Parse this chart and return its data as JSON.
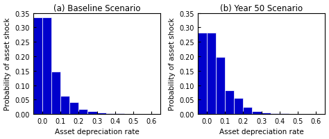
{
  "title_a": "(a) Baseline Scenario",
  "title_b": "(b) Year 50 Scenario",
  "xlabel": "Asset depreciation rate",
  "ylabel": "Probability of asset shock",
  "bar_color": "#0000CC",
  "bar_edgecolor": "#ffffff",
  "ylim": [
    0,
    0.35
  ],
  "yticks": [
    0,
    0.05,
    0.1,
    0.15,
    0.2,
    0.25,
    0.3,
    0.35
  ],
  "xticks": [
    0,
    0.1,
    0.2,
    0.3,
    0.4,
    0.5,
    0.6
  ],
  "bar_width": 0.05,
  "bin_edges_a": [
    -0.05,
    0.0,
    0.05,
    0.1,
    0.15,
    0.2,
    0.25,
    0.3,
    0.35,
    0.4,
    0.45,
    0.5,
    0.55,
    0.6,
    0.65
  ],
  "values_a": [
    0.335,
    0.335,
    0.148,
    0.062,
    0.04,
    0.016,
    0.01,
    0.004,
    0.003,
    0.002,
    0.001,
    0.001,
    0.001,
    0.001
  ],
  "bin_edges_b": [
    -0.05,
    0.0,
    0.05,
    0.1,
    0.15,
    0.2,
    0.25,
    0.3,
    0.35,
    0.4,
    0.45,
    0.5,
    0.55,
    0.6,
    0.65
  ],
  "values_b": [
    0.283,
    0.283,
    0.198,
    0.082,
    0.056,
    0.025,
    0.01,
    0.005,
    0.003,
    0.002,
    0.001,
    0.001,
    0.001,
    0.001
  ],
  "background_color": "#ffffff",
  "title_fontsize": 8.5,
  "label_fontsize": 7.5,
  "tick_fontsize": 7
}
